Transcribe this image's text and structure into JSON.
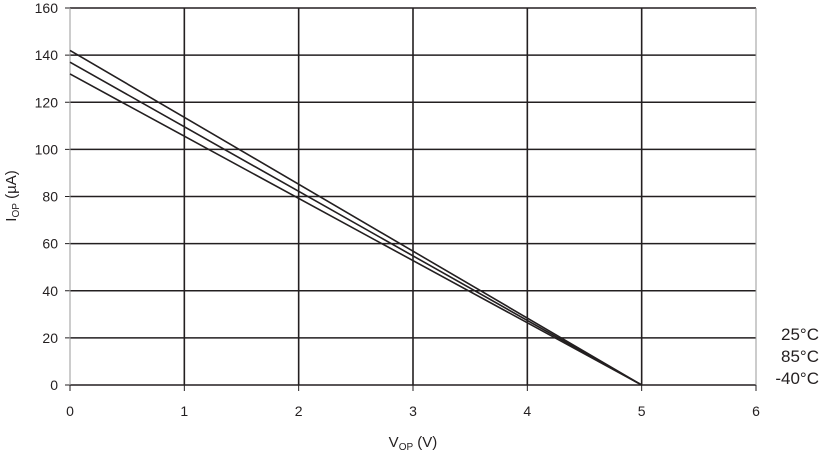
{
  "chart_data": {
    "type": "line",
    "xlabel": {
      "main": "V",
      "sub": "OP",
      "unit": " (V)"
    },
    "ylabel": {
      "main": "I",
      "sub": "OP",
      "unit": " (µA)"
    },
    "xlim": [
      0,
      6
    ],
    "ylim": [
      0,
      160
    ],
    "xticks": [
      "0",
      "1",
      "2",
      "3",
      "4",
      "5",
      "6"
    ],
    "yticks": [
      "0",
      "20",
      "40",
      "60",
      "80",
      "100",
      "120",
      "140",
      "160"
    ],
    "grid": true,
    "legend_position": "right",
    "series": [
      {
        "name": "25°C",
        "x": [
          0,
          5
        ],
        "y": [
          142,
          0
        ]
      },
      {
        "name": "85°C",
        "x": [
          0,
          5
        ],
        "y": [
          137,
          0
        ]
      },
      {
        "name": "-40°C",
        "x": [
          0,
          5
        ],
        "y": [
          132,
          0
        ]
      }
    ]
  }
}
